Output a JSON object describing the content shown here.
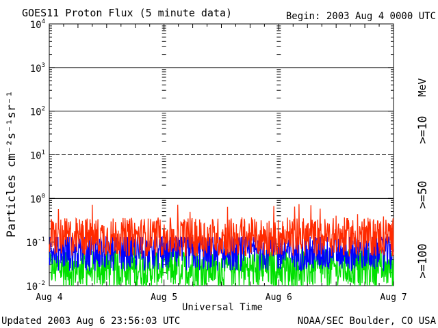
{
  "header": {
    "title": "GOES11 Proton Flux (5 minute data)",
    "begin": "Begin: 2003 Aug 4 0000 UTC"
  },
  "footer": {
    "updated": "Updated 2003 Aug  6 23:56:03 UTC",
    "credit": "NOAA/SEC Boulder, CO USA"
  },
  "chart_data": {
    "type": "line",
    "title": "GOES11 Proton Flux (5 minute data)",
    "xlabel": "Universal Time",
    "ylabel": "Particles cm⁻²s⁻¹sr⁻¹",
    "yscale": "log",
    "ylim": [
      0.01,
      10000
    ],
    "y_tick_labels": [
      {
        "base": "10",
        "exp": "-2"
      },
      {
        "base": "10",
        "exp": "-1"
      },
      {
        "base": "10",
        "exp": "0"
      },
      {
        "base": "10",
        "exp": "1"
      },
      {
        "base": "10",
        "exp": "2"
      },
      {
        "base": "10",
        "exp": "3"
      },
      {
        "base": "10",
        "exp": "4"
      }
    ],
    "x_tick_labels": [
      "Aug 4",
      "Aug 5",
      "Aug 6",
      "Aug 7"
    ],
    "xlim": [
      "2003-08-04",
      "2003-08-07"
    ],
    "unit_label": "MeV",
    "series": [
      {
        "name": ">=10",
        "color": "#ff2a00",
        "typical": 0.13,
        "peak": 0.8
      },
      {
        "name": ">=50",
        "color": "#0000ff",
        "typical": 0.06,
        "peak": 0.13
      },
      {
        "name": ">=100",
        "color": "#00e000",
        "typical": 0.025,
        "peak": 0.08
      }
    ],
    "threshold_lines": [
      1,
      10,
      100,
      1000
    ],
    "dashed_lines": [
      10
    ]
  }
}
